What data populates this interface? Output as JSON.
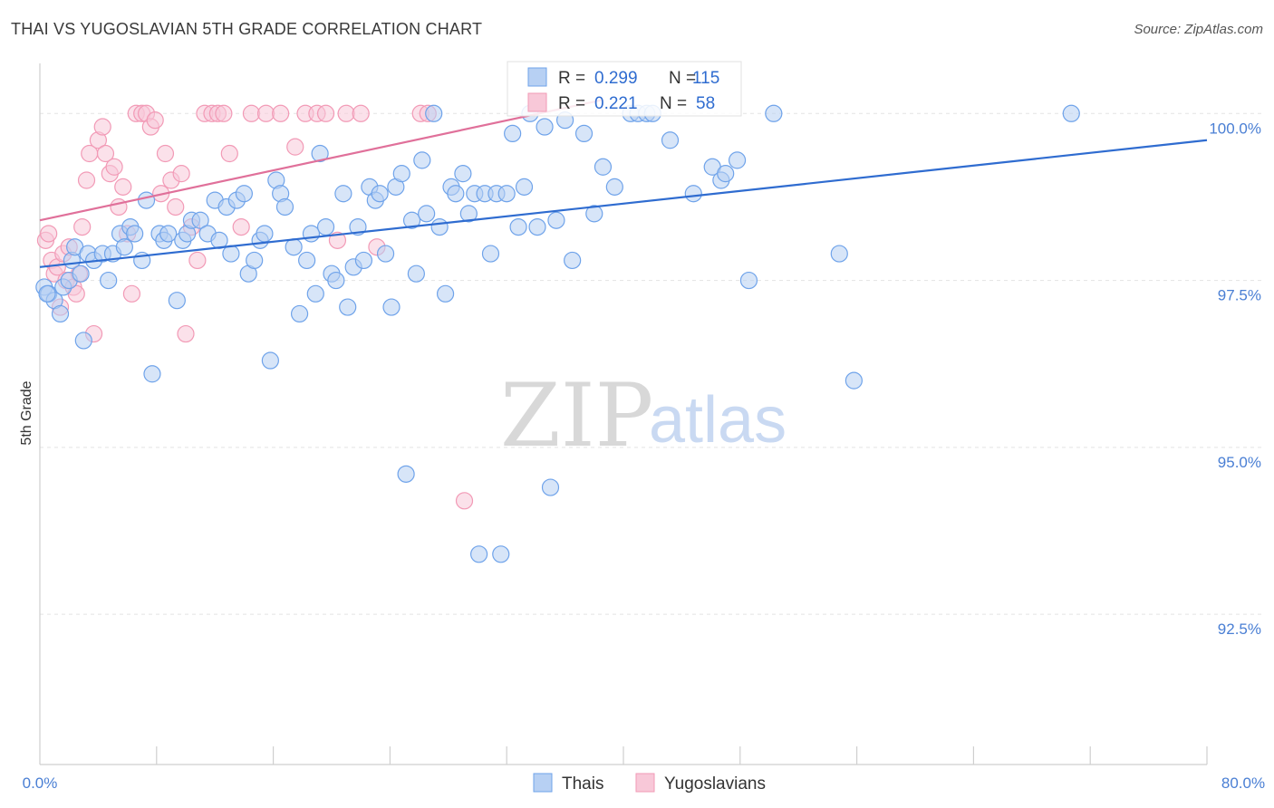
{
  "title": "THAI VS YUGOSLAVIAN 5TH GRADE CORRELATION CHART",
  "source": "Source: ZipAtlas.com",
  "watermark": {
    "zip": "ZIP",
    "atlas": "atlas"
  },
  "colors": {
    "thai": "#6fa3ea",
    "yugo": "#f29ab6",
    "thai_line": "#2f6cd0",
    "yugo_line": "#e0709a",
    "grid": "#e3e3e3",
    "axis_text": "#4a7fd4"
  },
  "legend": {
    "r_label": "R =",
    "n_label": "N =",
    "thai_r": "0.299",
    "thai_n": "115",
    "yugo_r": "0.221",
    "yugo_n": "58"
  },
  "bottom_legend": {
    "thai": "Thais",
    "yugo": "Yugoslavians"
  },
  "chart_data": {
    "type": "scatter",
    "ylabel": "5th Grade",
    "xlim": [
      0,
      80
    ],
    "ylim": [
      90.25,
      100.75
    ],
    "x_tick_labels": [
      "0.0%",
      "80.0%"
    ],
    "y_ticks": [
      92.5,
      95.0,
      97.5,
      100.0
    ],
    "y_tick_labels": [
      "92.5%",
      "95.0%",
      "97.5%",
      "100.0%"
    ],
    "series": [
      {
        "name": "Thais",
        "trend": {
          "x": [
            0,
            80
          ],
          "y": [
            97.7,
            99.6
          ]
        },
        "points": [
          [
            0.3,
            97.4
          ],
          [
            0.6,
            97.3
          ],
          [
            1.0,
            97.2
          ],
          [
            1.4,
            97.0
          ],
          [
            1.6,
            97.4
          ],
          [
            2.0,
            97.5
          ],
          [
            2.2,
            97.8
          ],
          [
            2.4,
            98.0
          ],
          [
            2.8,
            97.6
          ],
          [
            3.0,
            96.6
          ],
          [
            3.3,
            97.9
          ],
          [
            3.7,
            97.8
          ],
          [
            4.3,
            97.9
          ],
          [
            4.7,
            97.5
          ],
          [
            5.0,
            97.9
          ],
          [
            5.5,
            98.2
          ],
          [
            5.8,
            98.0
          ],
          [
            6.2,
            98.3
          ],
          [
            6.5,
            98.2
          ],
          [
            7.0,
            97.8
          ],
          [
            7.3,
            98.7
          ],
          [
            7.7,
            96.1
          ],
          [
            8.2,
            98.2
          ],
          [
            8.5,
            98.1
          ],
          [
            8.8,
            98.2
          ],
          [
            9.4,
            97.2
          ],
          [
            9.8,
            98.1
          ],
          [
            10.1,
            98.2
          ],
          [
            10.4,
            98.4
          ],
          [
            11.0,
            98.4
          ],
          [
            11.5,
            98.2
          ],
          [
            12.0,
            98.7
          ],
          [
            12.3,
            98.1
          ],
          [
            12.8,
            98.6
          ],
          [
            13.1,
            97.9
          ],
          [
            13.5,
            98.7
          ],
          [
            14.0,
            98.8
          ],
          [
            14.3,
            97.6
          ],
          [
            14.7,
            97.8
          ],
          [
            15.1,
            98.1
          ],
          [
            15.4,
            98.2
          ],
          [
            15.8,
            96.3
          ],
          [
            16.2,
            99.0
          ],
          [
            16.5,
            98.8
          ],
          [
            16.8,
            98.6
          ],
          [
            17.4,
            98.0
          ],
          [
            17.8,
            97.0
          ],
          [
            18.3,
            97.8
          ],
          [
            18.6,
            98.2
          ],
          [
            18.9,
            97.3
          ],
          [
            19.2,
            99.4
          ],
          [
            19.6,
            98.3
          ],
          [
            20.0,
            97.6
          ],
          [
            20.3,
            97.5
          ],
          [
            20.8,
            98.8
          ],
          [
            21.1,
            97.1
          ],
          [
            21.5,
            97.7
          ],
          [
            21.8,
            98.3
          ],
          [
            22.2,
            97.8
          ],
          [
            22.6,
            98.9
          ],
          [
            23.0,
            98.7
          ],
          [
            23.3,
            98.8
          ],
          [
            23.7,
            97.9
          ],
          [
            24.1,
            97.1
          ],
          [
            24.4,
            98.9
          ],
          [
            24.8,
            99.1
          ],
          [
            25.1,
            94.6
          ],
          [
            25.5,
            98.4
          ],
          [
            25.8,
            97.6
          ],
          [
            26.2,
            99.3
          ],
          [
            26.5,
            98.5
          ],
          [
            27.0,
            100.0
          ],
          [
            27.4,
            98.3
          ],
          [
            27.8,
            97.3
          ],
          [
            28.2,
            98.9
          ],
          [
            28.5,
            98.8
          ],
          [
            29.0,
            99.1
          ],
          [
            29.4,
            98.5
          ],
          [
            29.8,
            98.8
          ],
          [
            30.1,
            93.4
          ],
          [
            30.5,
            98.8
          ],
          [
            30.9,
            97.9
          ],
          [
            31.3,
            98.8
          ],
          [
            31.6,
            93.4
          ],
          [
            32.0,
            98.8
          ],
          [
            32.4,
            99.7
          ],
          [
            32.8,
            98.3
          ],
          [
            33.2,
            98.9
          ],
          [
            33.6,
            100.0
          ],
          [
            34.1,
            98.3
          ],
          [
            34.6,
            99.8
          ],
          [
            35.0,
            94.4
          ],
          [
            35.4,
            98.4
          ],
          [
            36.0,
            99.9
          ],
          [
            36.5,
            97.8
          ],
          [
            37.3,
            99.7
          ],
          [
            38.0,
            98.5
          ],
          [
            38.6,
            99.2
          ],
          [
            39.4,
            98.9
          ],
          [
            40.5,
            100.0
          ],
          [
            41.0,
            100.0
          ],
          [
            41.6,
            100.0
          ],
          [
            42.0,
            100.0
          ],
          [
            43.2,
            99.6
          ],
          [
            44.8,
            98.8
          ],
          [
            46.1,
            99.2
          ],
          [
            46.7,
            99.0
          ],
          [
            47.0,
            99.1
          ],
          [
            47.8,
            99.3
          ],
          [
            48.6,
            97.5
          ],
          [
            50.3,
            100.0
          ],
          [
            54.8,
            97.9
          ],
          [
            55.8,
            96.0
          ],
          [
            70.7,
            100.0
          ],
          [
            0.5,
            97.3
          ]
        ]
      },
      {
        "name": "Yugoslavians",
        "trend": {
          "x": [
            0,
            38.5
          ],
          "y": [
            98.4,
            100.2
          ]
        },
        "points": [
          [
            0.4,
            98.1
          ],
          [
            0.6,
            98.2
          ],
          [
            0.8,
            97.8
          ],
          [
            1.0,
            97.6
          ],
          [
            1.2,
            97.7
          ],
          [
            1.4,
            97.1
          ],
          [
            1.6,
            97.9
          ],
          [
            1.8,
            97.5
          ],
          [
            2.0,
            98.0
          ],
          [
            2.3,
            97.4
          ],
          [
            2.5,
            97.3
          ],
          [
            2.7,
            97.6
          ],
          [
            2.9,
            98.3
          ],
          [
            3.2,
            99.0
          ],
          [
            3.4,
            99.4
          ],
          [
            3.7,
            96.7
          ],
          [
            4.0,
            99.6
          ],
          [
            4.3,
            99.8
          ],
          [
            4.5,
            99.4
          ],
          [
            4.8,
            99.1
          ],
          [
            5.1,
            99.2
          ],
          [
            5.4,
            98.6
          ],
          [
            5.7,
            98.9
          ],
          [
            6.0,
            98.2
          ],
          [
            6.3,
            97.3
          ],
          [
            6.6,
            100.0
          ],
          [
            7.0,
            100.0
          ],
          [
            7.3,
            100.0
          ],
          [
            7.6,
            99.8
          ],
          [
            7.9,
            99.9
          ],
          [
            8.3,
            98.8
          ],
          [
            8.6,
            99.4
          ],
          [
            9.0,
            99.0
          ],
          [
            9.3,
            98.6
          ],
          [
            9.7,
            99.1
          ],
          [
            10.0,
            96.7
          ],
          [
            10.4,
            98.3
          ],
          [
            10.8,
            97.8
          ],
          [
            11.3,
            100.0
          ],
          [
            11.8,
            100.0
          ],
          [
            12.2,
            100.0
          ],
          [
            12.6,
            100.0
          ],
          [
            13.0,
            99.4
          ],
          [
            13.8,
            98.3
          ],
          [
            14.5,
            100.0
          ],
          [
            15.5,
            100.0
          ],
          [
            16.5,
            100.0
          ],
          [
            17.5,
            99.5
          ],
          [
            18.2,
            100.0
          ],
          [
            19.0,
            100.0
          ],
          [
            19.6,
            100.0
          ],
          [
            20.4,
            98.1
          ],
          [
            21.0,
            100.0
          ],
          [
            22.0,
            100.0
          ],
          [
            23.1,
            98.0
          ],
          [
            26.1,
            100.0
          ],
          [
            26.6,
            100.0
          ],
          [
            29.1,
            94.2
          ]
        ]
      }
    ]
  }
}
